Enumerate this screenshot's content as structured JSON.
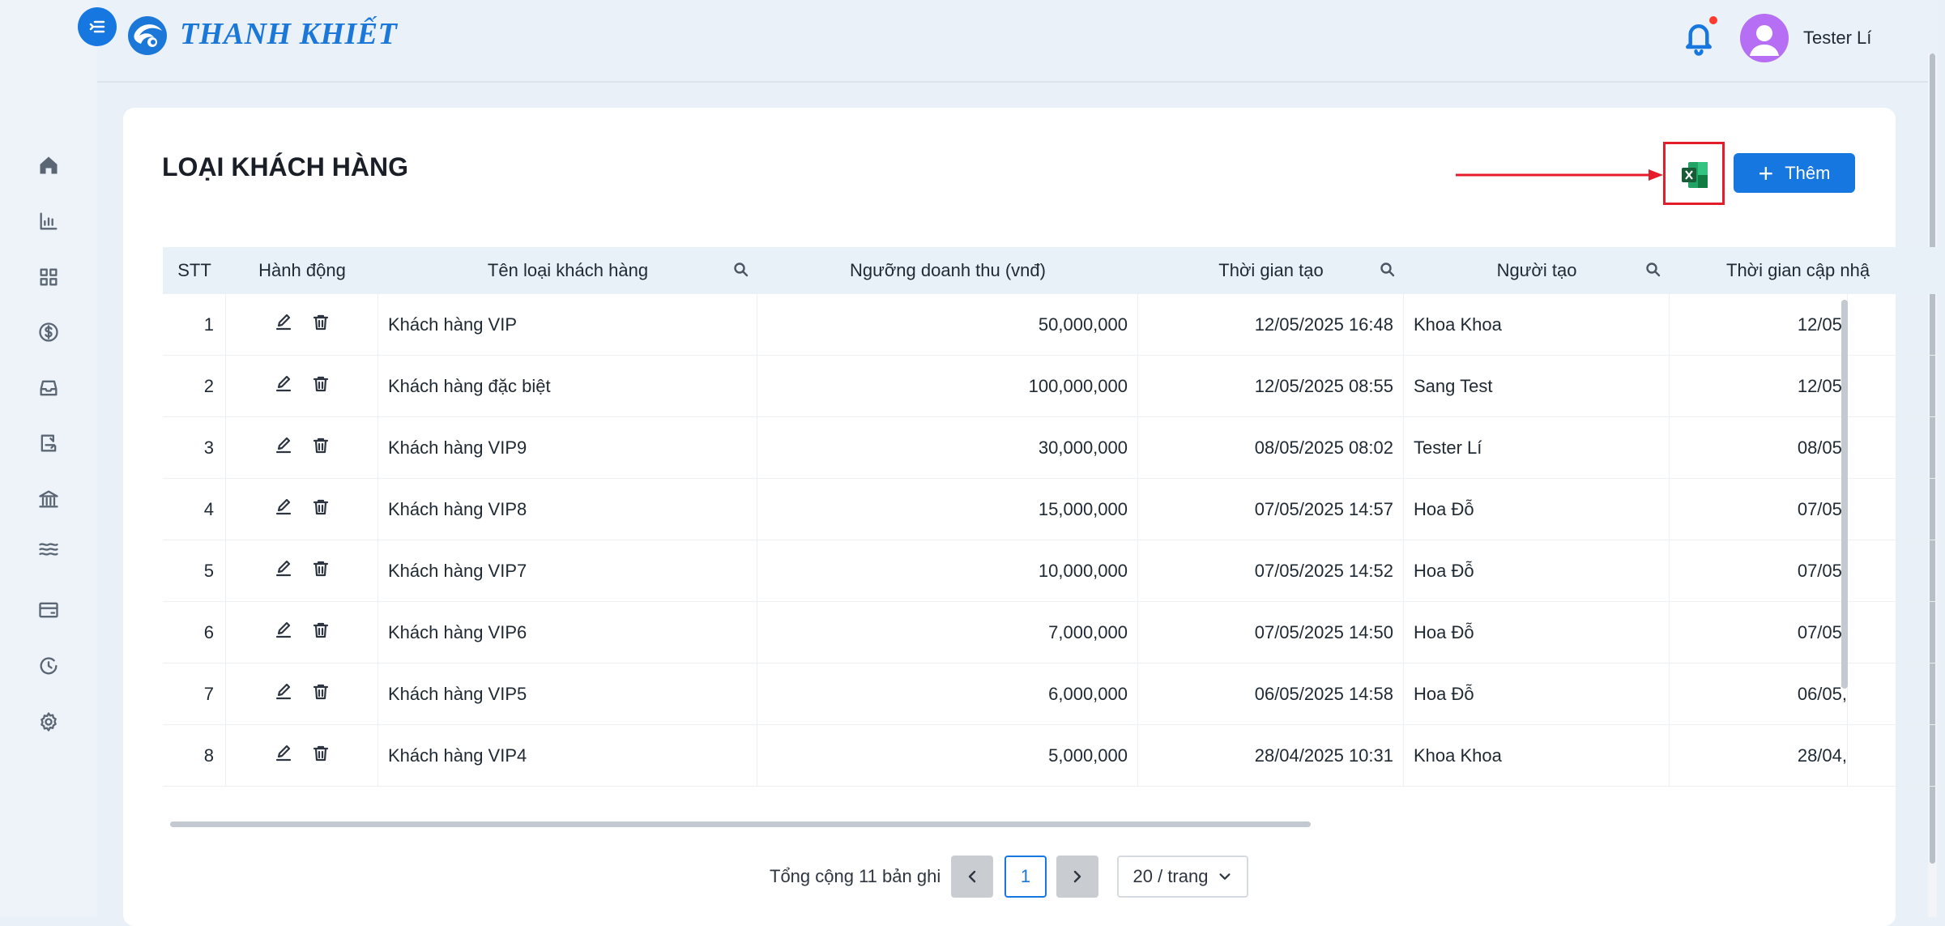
{
  "app": {
    "brand": "THANH KHIẾT"
  },
  "header": {
    "username": "Tester Lí"
  },
  "sidebar": {
    "icons": [
      "home-icon",
      "chart-icon",
      "grid-icon",
      "dollar-icon",
      "inbox-icon",
      "transfer-icon",
      "bank-icon",
      "waves-icon",
      "wallet-icon",
      "history-icon",
      "gear-icon"
    ]
  },
  "page": {
    "title": "LOẠI KHÁCH HÀNG",
    "add_label": "Thêm"
  },
  "table": {
    "columns": [
      "STT",
      "Hành động",
      "Tên loại khách hàng",
      "Ngưỡng doanh thu (vnđ)",
      "Thời gian tạo",
      "Người tạo",
      "Thời gian cập nhậ"
    ],
    "rows": [
      {
        "stt": "1",
        "name": "Khách hàng VIP",
        "threshold": "50,000,000",
        "created": "12/05/2025 16:48",
        "creator": "Khoa Khoa",
        "updated": "12/05,"
      },
      {
        "stt": "2",
        "name": "Khách hàng đặc biệt",
        "threshold": "100,000,000",
        "created": "12/05/2025 08:55",
        "creator": "Sang Test",
        "updated": "12/05,"
      },
      {
        "stt": "3",
        "name": "Khách hàng VIP9",
        "threshold": "30,000,000",
        "created": "08/05/2025 08:02",
        "creator": "Tester Lí",
        "updated": "08/05,"
      },
      {
        "stt": "4",
        "name": "Khách hàng VIP8",
        "threshold": "15,000,000",
        "created": "07/05/2025 14:57",
        "creator": "Hoa Đỗ",
        "updated": "07/05,"
      },
      {
        "stt": "5",
        "name": "Khách hàng VIP7",
        "threshold": "10,000,000",
        "created": "07/05/2025 14:52",
        "creator": "Hoa Đỗ",
        "updated": "07/05,"
      },
      {
        "stt": "6",
        "name": "Khách hàng VIP6",
        "threshold": "7,000,000",
        "created": "07/05/2025 14:50",
        "creator": "Hoa Đỗ",
        "updated": "07/05,"
      },
      {
        "stt": "7",
        "name": "Khách hàng VIP5",
        "threshold": "6,000,000",
        "created": "06/05/2025 14:58",
        "creator": "Hoa Đỗ",
        "updated": "06/05,"
      },
      {
        "stt": "8",
        "name": "Khách hàng VIP4",
        "threshold": "5,000,000",
        "created": "28/04/2025 10:31",
        "creator": "Khoa Khoa",
        "updated": "28/04,"
      }
    ]
  },
  "pagination": {
    "total": "Tổng cộng 11 bản ghi",
    "current_page": "1",
    "per_page": "20 / trang"
  },
  "colors": {
    "primary": "#1677e0",
    "highlight": "#e51d2a",
    "excel": "#1d7a45"
  }
}
